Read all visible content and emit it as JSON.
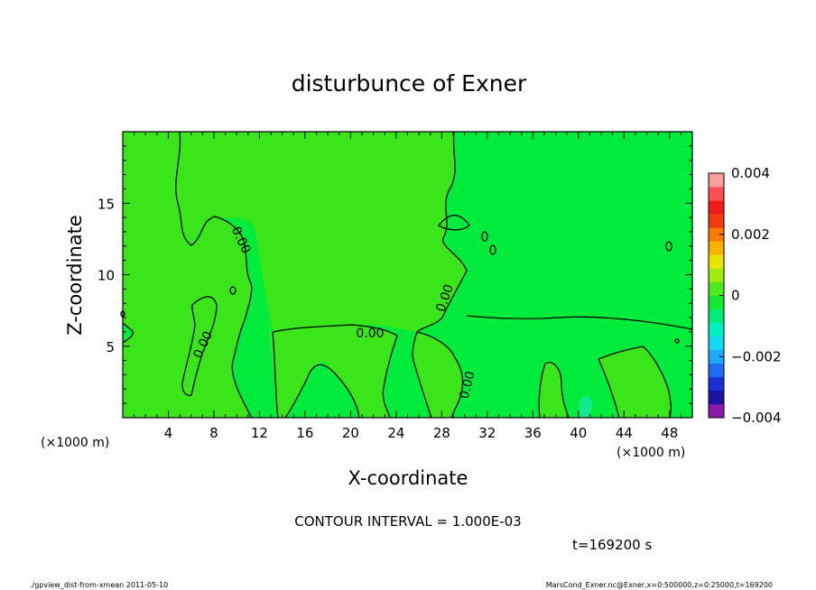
{
  "chart_data": {
    "type": "heatmap",
    "title": "disturbunce of Exner",
    "xlabel": "X-coordinate",
    "ylabel": "Z-coordinate",
    "x_unit_left": "(×1000 m)",
    "x_unit_right": "(×1000 m)",
    "xlim": [
      0,
      50
    ],
    "ylim": [
      0,
      20
    ],
    "x_ticks": [
      4,
      8,
      12,
      16,
      20,
      24,
      28,
      32,
      36,
      40,
      44,
      48
    ],
    "y_ticks": [
      5,
      10,
      15
    ],
    "contour_label": "0.00",
    "contour_interval_text": "CONTOUR INTERVAL = 1.000E-03",
    "time_text": "t=169200 s",
    "colorbar": {
      "min": -0.004,
      "max": 0.004,
      "tick_values": [
        0.004,
        0.002,
        0,
        -0.002,
        -0.004
      ],
      "tick_labels": [
        "0.004",
        "0.002",
        "0",
        "−0.002",
        "−0.004"
      ],
      "colors": [
        "#8a1aa8",
        "#1a14a0",
        "#1a2ed8",
        "#1e6cf0",
        "#1ea8f8",
        "#14d8f0",
        "#00f0c0",
        "#00ec7a",
        "#14e632",
        "#50e81e",
        "#a0ea10",
        "#e6e600",
        "#f4b400",
        "#f87c00",
        "#f03c10",
        "#f01c1c",
        "#f85050",
        "#f89c9c"
      ]
    },
    "field_colors": {
      "slightly_negative": "#00ec3c",
      "slightly_positive": "#3ae61a",
      "negative_patch": "#14e88c"
    },
    "contour_color": "#000000"
  },
  "footer": {
    "left": "./gpview_dist-from-xmean  2011-05-10",
    "right": "MarsCond_Exner.nc@Exner,x=0:500000,z=0:25000,t=169200"
  }
}
